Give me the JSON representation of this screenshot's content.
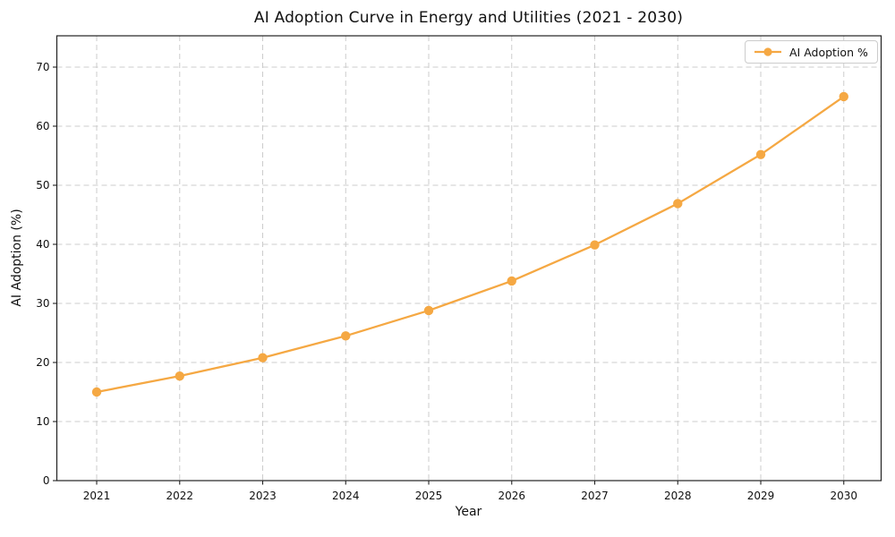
{
  "chart_data": {
    "type": "line",
    "title": "AI Adoption Curve in Energy and Utilities (2021 - 2030)",
    "xlabel": "Year",
    "ylabel": "AI Adoption (%)",
    "x": [
      2021,
      2022,
      2023,
      2024,
      2025,
      2026,
      2027,
      2028,
      2029,
      2030
    ],
    "series": [
      {
        "name": "AI Adoption %",
        "values": [
          15.0,
          17.7,
          20.8,
          24.5,
          28.8,
          33.8,
          39.9,
          46.9,
          55.2,
          65.0
        ],
        "color": "#F5A843",
        "marker": "circle"
      }
    ],
    "xticks": [
      2021,
      2022,
      2023,
      2024,
      2025,
      2026,
      2027,
      2028,
      2029,
      2030
    ],
    "yticks": [
      0,
      10,
      20,
      30,
      40,
      50,
      60,
      70
    ],
    "xlim": [
      2020.52,
      2030.45
    ],
    "ylim": [
      0,
      75.3
    ],
    "grid": true,
    "grid_style": "dashed",
    "legend_position": "upper-right"
  },
  "colors": {
    "line": "#F5A843",
    "grid": "#CCCCCC",
    "spine": "#222222",
    "text": "#111111",
    "legend_border": "#CCCCCC",
    "background": "#FFFFFF"
  }
}
